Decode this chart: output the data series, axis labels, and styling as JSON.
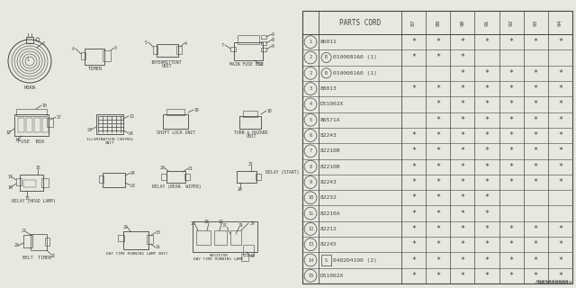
{
  "diagram_id": "AB35000089",
  "bg_color": "#e8e8e0",
  "line_color": "#444444",
  "table_header": "PARTS CORD",
  "year_cols": [
    "8\n7",
    "8\n8",
    "9\n0",
    "9\n1",
    "9\n2",
    "9\n3",
    "9\n4"
  ],
  "parts": [
    {
      "num": "1",
      "prefix": "",
      "code": "86011",
      "stars": [
        1,
        1,
        1,
        1,
        1,
        1,
        1
      ],
      "row2": false
    },
    {
      "num": "2",
      "prefix": "B",
      "code": "010008160 (1)",
      "stars": [
        1,
        1,
        1,
        0,
        0,
        0,
        0
      ],
      "row2": false
    },
    {
      "num": "2",
      "prefix": "B",
      "code": "010006160 (1)",
      "stars": [
        0,
        0,
        1,
        1,
        1,
        1,
        1
      ],
      "row2": true
    },
    {
      "num": "3",
      "prefix": "",
      "code": "88013",
      "stars": [
        1,
        1,
        1,
        1,
        1,
        1,
        1
      ],
      "row2": false
    },
    {
      "num": "4",
      "prefix": "",
      "code": "D51002X",
      "stars": [
        0,
        1,
        1,
        1,
        1,
        1,
        1
      ],
      "row2": false
    },
    {
      "num": "5",
      "prefix": "",
      "code": "86571A",
      "stars": [
        0,
        1,
        1,
        1,
        1,
        1,
        1
      ],
      "row2": false
    },
    {
      "num": "6",
      "prefix": "",
      "code": "82243",
      "stars": [
        1,
        1,
        1,
        1,
        1,
        1,
        1
      ],
      "row2": false
    },
    {
      "num": "7",
      "prefix": "",
      "code": "82210B",
      "stars": [
        1,
        1,
        1,
        1,
        1,
        1,
        1
      ],
      "row2": false
    },
    {
      "num": "8",
      "prefix": "",
      "code": "82210B",
      "stars": [
        1,
        1,
        1,
        1,
        1,
        1,
        1
      ],
      "row2": false
    },
    {
      "num": "9",
      "prefix": "",
      "code": "82243",
      "stars": [
        1,
        1,
        1,
        1,
        1,
        1,
        1
      ],
      "row2": false
    },
    {
      "num": "10",
      "prefix": "",
      "code": "82232",
      "stars": [
        1,
        1,
        1,
        1,
        0,
        0,
        0
      ],
      "row2": false
    },
    {
      "num": "11",
      "prefix": "",
      "code": "82210A",
      "stars": [
        1,
        1,
        1,
        1,
        0,
        0,
        0
      ],
      "row2": false
    },
    {
      "num": "12",
      "prefix": "",
      "code": "82212",
      "stars": [
        1,
        1,
        1,
        1,
        1,
        1,
        1
      ],
      "row2": false
    },
    {
      "num": "13",
      "prefix": "",
      "code": "82245",
      "stars": [
        1,
        1,
        1,
        1,
        1,
        1,
        1
      ],
      "row2": false
    },
    {
      "num": "14",
      "prefix": "S",
      "code": "040204100 (2)",
      "stars": [
        1,
        1,
        1,
        1,
        1,
        1,
        1
      ],
      "row2": false
    },
    {
      "num": "15",
      "prefix": "",
      "code": "D51002X",
      "stars": [
        1,
        1,
        1,
        1,
        1,
        1,
        1
      ],
      "row2": false
    }
  ]
}
